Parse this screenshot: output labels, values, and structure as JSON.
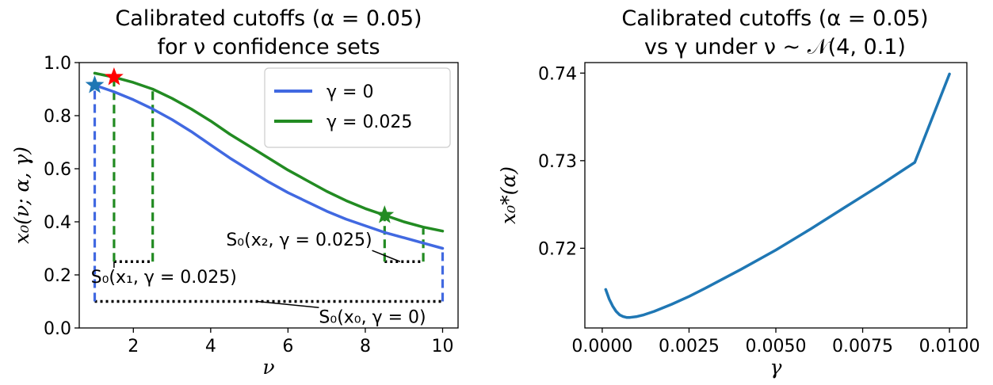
{
  "figure": {
    "left_title": [
      "Calibrated cutoffs (α = 0.05)",
      "for ν confidence sets"
    ],
    "right_title": [
      "Calibrated cutoffs (α = 0.05)",
      "vs γ under ν ~ 𝒩(4, 0.1)"
    ]
  },
  "chart_data": [
    {
      "type": "line",
      "xlabel": "ν",
      "ylabel": "x₀(ν; α, γ)",
      "xlim": [
        0.6,
        10.4
      ],
      "ylim": [
        0.0,
        1.0
      ],
      "xticks": [
        2,
        4,
        6,
        8,
        10
      ],
      "xtick_labels": [
        "2",
        "4",
        "6",
        "8",
        "10"
      ],
      "yticks": [
        0.0,
        0.2,
        0.4,
        0.6,
        0.8,
        1.0
      ],
      "ytick_labels": [
        "0.0",
        "0.2",
        "0.4",
        "0.6",
        "0.8",
        "1.0"
      ],
      "grid": false,
      "legend_position": "top-right",
      "series": [
        {
          "name": "γ = 0",
          "color": "#4169e1",
          "x": [
            1,
            1.5,
            2,
            2.5,
            3,
            3.5,
            4,
            4.5,
            5,
            5.5,
            6,
            6.5,
            7,
            7.5,
            8,
            8.5,
            9,
            9.5,
            10
          ],
          "y": [
            0.915,
            0.89,
            0.86,
            0.825,
            0.785,
            0.74,
            0.69,
            0.64,
            0.595,
            0.55,
            0.51,
            0.475,
            0.44,
            0.41,
            0.385,
            0.36,
            0.34,
            0.32,
            0.3
          ]
        },
        {
          "name": "γ = 0.025",
          "color": "#228b22",
          "x": [
            1,
            1.5,
            2,
            2.5,
            3,
            3.5,
            4,
            4.5,
            5,
            5.5,
            6,
            6.5,
            7,
            7.5,
            8,
            8.5,
            9,
            9.5,
            10
          ],
          "y": [
            0.96,
            0.945,
            0.925,
            0.9,
            0.865,
            0.825,
            0.78,
            0.73,
            0.685,
            0.64,
            0.595,
            0.555,
            0.515,
            0.48,
            0.45,
            0.425,
            0.4,
            0.38,
            0.365
          ]
        }
      ],
      "markers": [
        {
          "x": 1.0,
          "y": 0.915,
          "color": "#1f77b4",
          "shape": "star"
        },
        {
          "x": 1.5,
          "y": 0.945,
          "color": "#ff0000",
          "shape": "star"
        },
        {
          "x": 8.5,
          "y": 0.425,
          "color": "#228b22",
          "shape": "star"
        }
      ],
      "vlines": [
        {
          "x": 1.0,
          "y0": 0.1,
          "y1": 0.915,
          "color": "#4169e1"
        },
        {
          "x": 10.0,
          "y0": 0.1,
          "y1": 0.3,
          "color": "#4169e1"
        },
        {
          "x": 1.5,
          "y0": 0.25,
          "y1": 0.945,
          "color": "#228b22"
        },
        {
          "x": 2.5,
          "y0": 0.25,
          "y1": 0.9,
          "color": "#228b22"
        },
        {
          "x": 8.5,
          "y0": 0.25,
          "y1": 0.425,
          "color": "#228b22"
        },
        {
          "x": 9.5,
          "y0": 0.25,
          "y1": 0.375,
          "color": "#228b22"
        }
      ],
      "hlines": [
        {
          "x0": 1.0,
          "x1": 10.0,
          "y": 0.1
        },
        {
          "x0": 1.5,
          "x1": 2.5,
          "y": 0.25
        },
        {
          "x0": 8.5,
          "x1": 9.5,
          "y": 0.25
        }
      ],
      "annotations": [
        {
          "text": "S₀(x₀, γ = 0)",
          "x": 6.8,
          "y": 0.02,
          "arrow_to": [
            5.2,
            0.1
          ]
        },
        {
          "text": "S₀(x₁, γ = 0.025)",
          "x": 0.9,
          "y": 0.17,
          "arrow_to": [
            1.5,
            0.25
          ]
        },
        {
          "text": "S₀(x₂, γ = 0.025)",
          "x": 4.4,
          "y": 0.31,
          "arrow_to": [
            8.9,
            0.25
          ]
        }
      ]
    },
    {
      "type": "line",
      "xlabel": "γ",
      "ylabel": "x₀*(α)",
      "xlim": [
        -0.0005,
        0.0105
      ],
      "ylim": [
        0.7109,
        0.7412
      ],
      "xticks": [
        0.0,
        0.0025,
        0.005,
        0.0075,
        0.01
      ],
      "xtick_labels": [
        "0.0000",
        "0.0025",
        "0.0050",
        "0.0075",
        "0.0100"
      ],
      "yticks": [
        0.72,
        0.73,
        0.74
      ],
      "ytick_labels": [
        "0.72",
        "0.73",
        "0.74"
      ],
      "grid": false,
      "series": [
        {
          "color": "#1f77b4",
          "x": [
            0.0001,
            0.0002,
            0.0003,
            0.0004,
            0.0005,
            0.0006,
            0.0007,
            0.0008,
            0.001,
            0.0012,
            0.0015,
            0.002,
            0.0025,
            0.003,
            0.004,
            0.005,
            0.006,
            0.007,
            0.008,
            0.009,
            0.01
          ],
          "y": [
            0.7153,
            0.7142,
            0.7134,
            0.7128,
            0.7124,
            0.7122,
            0.7121,
            0.7121,
            0.7122,
            0.7124,
            0.7128,
            0.7136,
            0.7145,
            0.7155,
            0.7176,
            0.7198,
            0.7222,
            0.7247,
            0.7272,
            0.7298,
            0.7399
          ]
        }
      ]
    }
  ]
}
